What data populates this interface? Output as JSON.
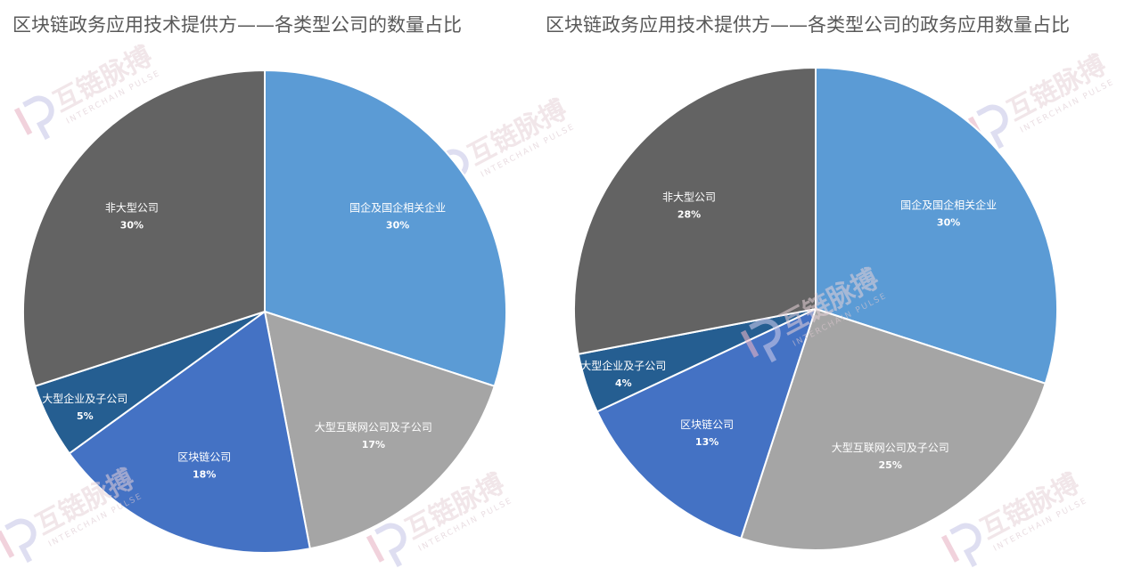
{
  "watermark": {
    "brand": "互链脉搏",
    "sub": "INTERCHAIN PULSE"
  },
  "chart_data": [
    {
      "type": "pie",
      "title": "区块链政务应用技术提供方——各类型公司的数量占比",
      "slices": [
        {
          "label": "国企及国企相关企业",
          "value": 30,
          "display": "30%",
          "color": "#5b9bd5"
        },
        {
          "label": "大型互联网公司及子公司",
          "value": 17,
          "display": "17%",
          "color": "#a5a5a5"
        },
        {
          "label": "区块链公司",
          "value": 18,
          "display": "18%",
          "color": "#4472c4"
        },
        {
          "label": "大型企业及子公司",
          "value": 5,
          "display": "5%",
          "color": "#255e91"
        },
        {
          "label": "非大型公司",
          "value": 30,
          "display": "30%",
          "color": "#636363"
        }
      ]
    },
    {
      "type": "pie",
      "title": "区块链政务应用技术提供方——各类型公司的政务应用数量占比",
      "slices": [
        {
          "label": "国企及国企相关企业",
          "value": 30,
          "display": "30%",
          "color": "#5b9bd5"
        },
        {
          "label": "大型互联网公司及子公司",
          "value": 25,
          "display": "25%",
          "color": "#a5a5a5"
        },
        {
          "label": "区块链公司",
          "value": 13,
          "display": "13%",
          "color": "#4472c4"
        },
        {
          "label": "大型企业及子公司",
          "value": 4,
          "display": "4%",
          "color": "#255e91"
        },
        {
          "label": "非大型公司",
          "value": 28,
          "display": "28%",
          "color": "#636363"
        }
      ]
    }
  ]
}
